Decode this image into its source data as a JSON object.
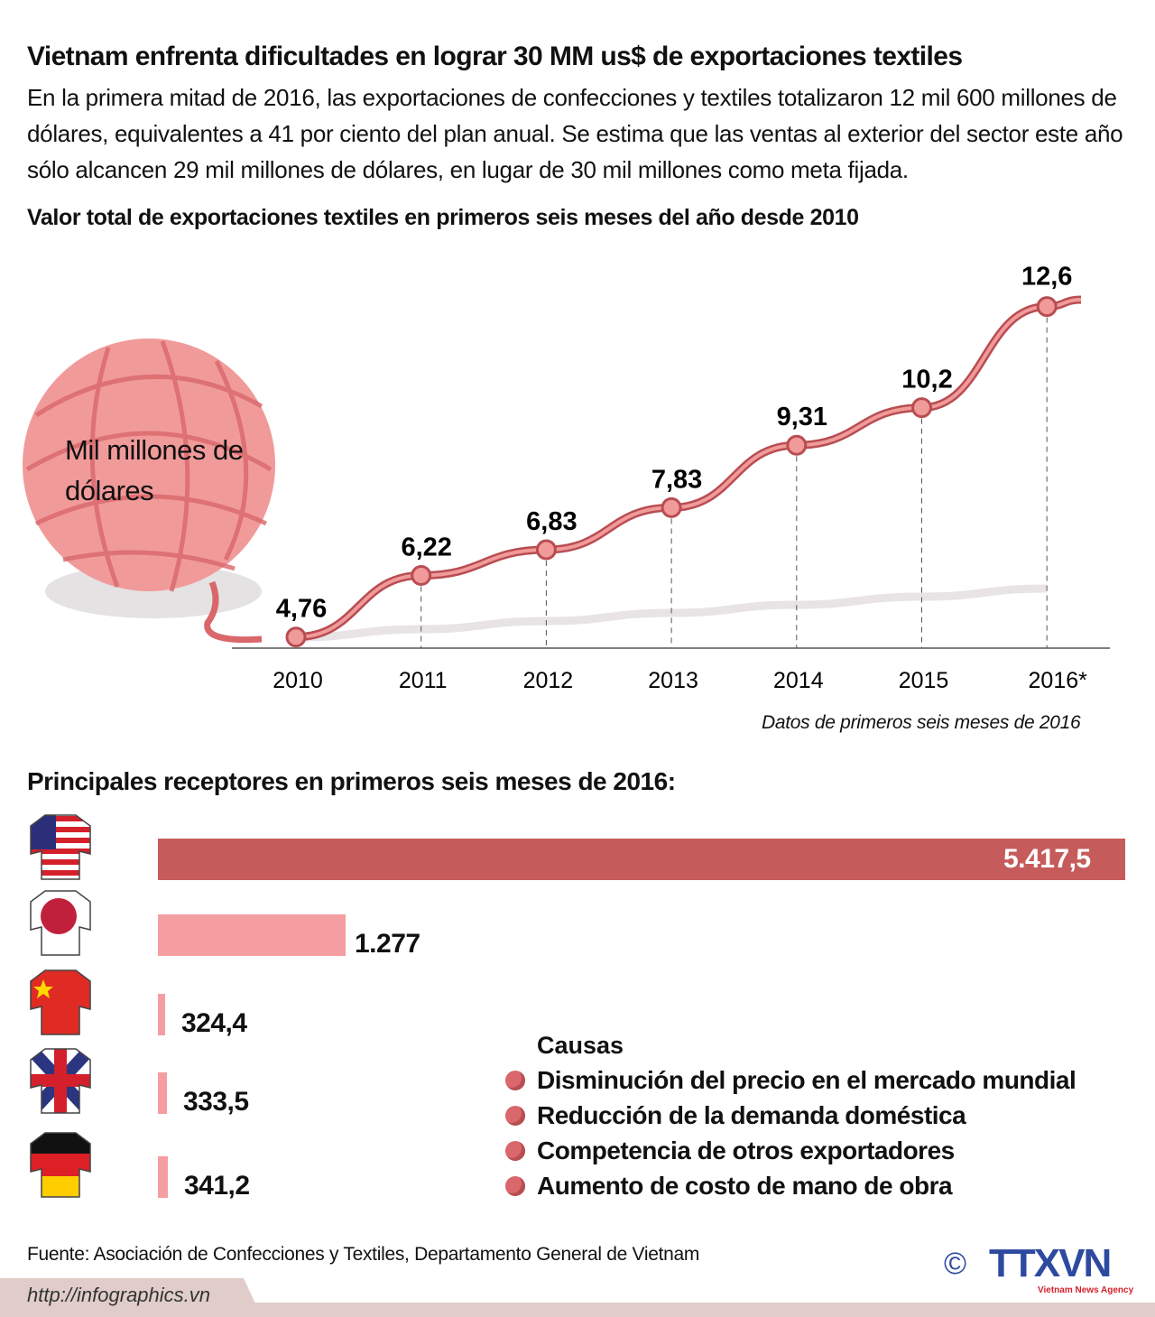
{
  "title": "Vietnam enfrenta dificultades en lograr 30 MM us$ de exportaciones textiles",
  "intro": "En la primera mitad de 2016, las exportaciones de confecciones y textiles totalizaron 12 mil 600 millones de dólares, equivalentes a 41 por ciento del plan anual. Se estima que las ventas al exterior del sector este año sólo alcancen 29 mil millones de dólares, en lugar de 30 mil millones como meta fijada.",
  "colors": {
    "line": "#d9676b",
    "bar_main": "#c65b5c",
    "bar_light": "#f59ea2",
    "footer": "#e0cdc9",
    "logo": "#2e4aa0"
  },
  "chart_data": [
    {
      "type": "line",
      "title": "Valor total de exportaciones textiles en primeros seis meses del año desde 2010",
      "ylabel": "Mil millones de dólares",
      "categories": [
        "2010",
        "2011",
        "2012",
        "2013",
        "2014",
        "2015",
        "2016*"
      ],
      "values": [
        4.76,
        6.22,
        6.83,
        7.83,
        9.31,
        10.2,
        12.6
      ],
      "labels": [
        "4,76",
        "6,22",
        "6,83",
        "7,83",
        "9,31",
        "10,2",
        "12,6"
      ],
      "note": "Datos de primeros seis meses de 2016",
      "grid": false
    },
    {
      "type": "bar",
      "orientation": "horizontal",
      "title": "Principales receptores en primeros seis meses de 2016:",
      "categories": [
        "Estados Unidos",
        "Japón",
        "China",
        "Reino Unido",
        "Alemania"
      ],
      "icons": [
        "us-flag-shirt-icon",
        "japan-flag-shirt-icon",
        "china-flag-shirt-icon",
        "uk-flag-shirt-icon",
        "germany-flag-shirt-icon"
      ],
      "values": [
        5417.5,
        1277,
        324.4,
        333.5,
        341.2
      ],
      "labels": [
        "5.417,5",
        "1.277",
        "324,4",
        "333,5",
        "341,2"
      ]
    }
  ],
  "causes": {
    "title": "Causas",
    "items": [
      "Disminución del precio en el mercado mundial",
      "Reducción de la demanda doméstica",
      "Competencia de otros exportadores",
      "Aumento de costo de mano de obra"
    ]
  },
  "source": "Fuente: Asociación de Confecciones y Textiles, Departamento General de Vietnam",
  "footer": {
    "url": "http://infographics.vn",
    "copyright": "©",
    "logo": "TTXVN",
    "logo_sub": "Vietnam News Agency"
  }
}
